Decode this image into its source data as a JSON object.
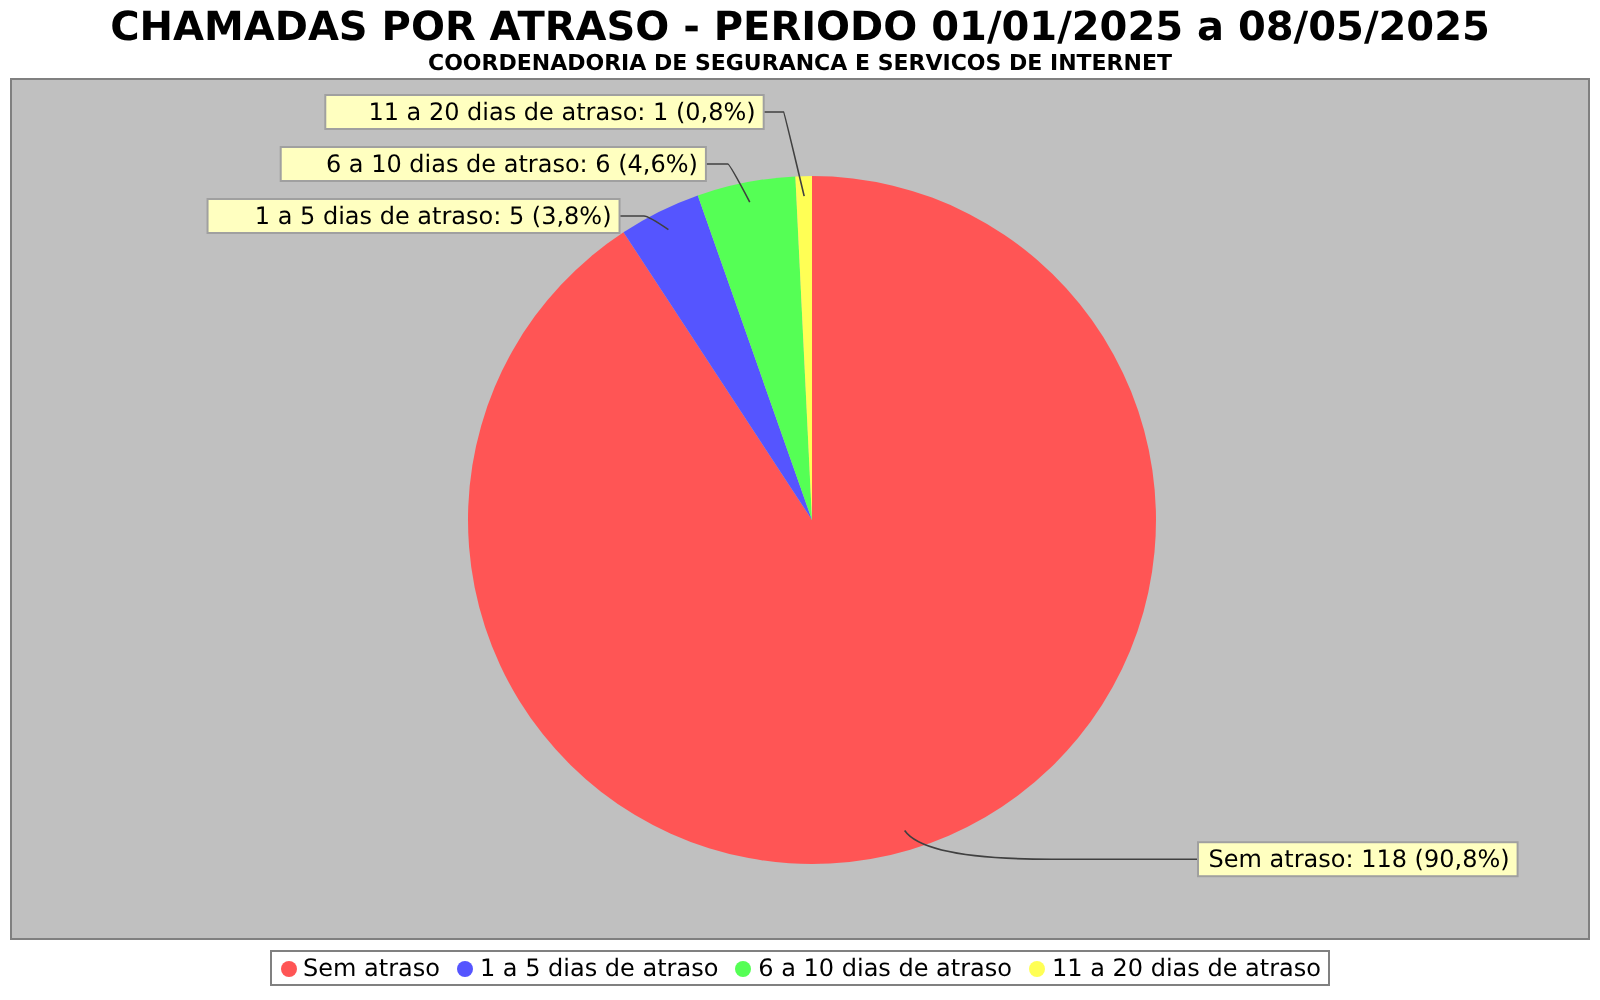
{
  "chart_data": {
    "type": "pie",
    "title": "CHAMADAS POR ATRASO - PERIODO 01/01/2025 a 08/05/2025",
    "subtitle": "COORDENADORIA DE SEGURANCA E SERVICOS DE INTERNET",
    "categories": [
      "Sem atraso",
      "1 a 5 dias de atraso",
      "6 a 10 dias de atraso",
      "11 a 20 dias de atraso"
    ],
    "values": [
      118,
      5,
      6,
      1
    ],
    "colors": [
      "#ff5555",
      "#5555ff",
      "#55ff55",
      "#ffff55"
    ],
    "value_labels": [
      "Sem atraso: 118 (90,8%)",
      "1 a 5 dias de atraso: 5 (3,8%)",
      "6 a 10 dias de atraso: 6 (4,6%)",
      "11 a 20 dias de atraso: 1 (0,8%)"
    ],
    "legend": "bottom"
  }
}
